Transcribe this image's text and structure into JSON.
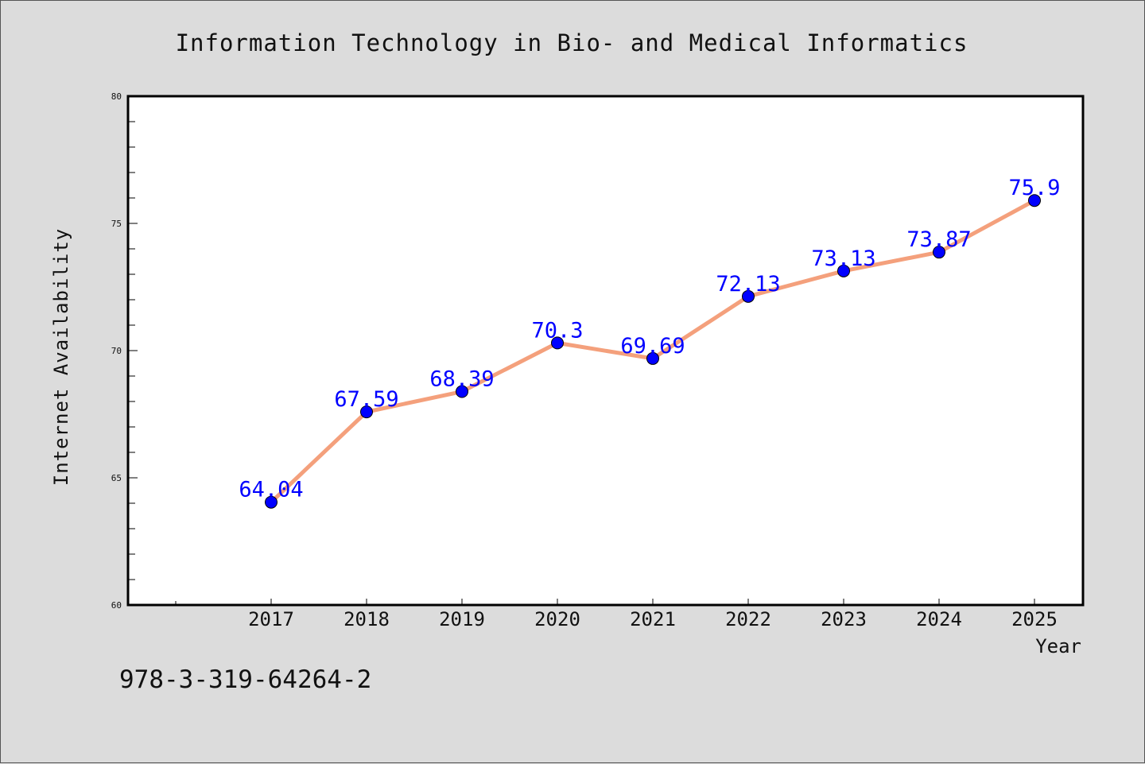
{
  "footer_text": "978-3-319-64264-2",
  "chart_data": {
    "type": "line",
    "title": "Information Technology in Bio- and Medical Informatics",
    "xlabel": "Year",
    "ylabel": "Internet Availability",
    "x": [
      "2017",
      "2018",
      "2019",
      "2020",
      "2021",
      "2022",
      "2023",
      "2024",
      "2025"
    ],
    "series": [
      {
        "values": [
          64.04,
          67.59,
          68.39,
          70.3,
          69.69,
          72.13,
          73.13,
          73.87,
          75.9
        ],
        "data_labels": [
          "64.04",
          "67.59",
          "68.39",
          "70.3",
          "69.69",
          "72.13",
          "73.13",
          "73.87",
          "75.9"
        ],
        "line_color": "#f4a07c",
        "marker_color": "#0000ff"
      }
    ],
    "ylim": [
      60,
      80
    ],
    "y_ticks": [
      "60",
      "65",
      "70",
      "75",
      "80"
    ],
    "grid": false,
    "legend": "none",
    "colors": {
      "background": "#dcdcdc",
      "plot_background": "#ffffff",
      "label_color": "#0000ff"
    }
  }
}
